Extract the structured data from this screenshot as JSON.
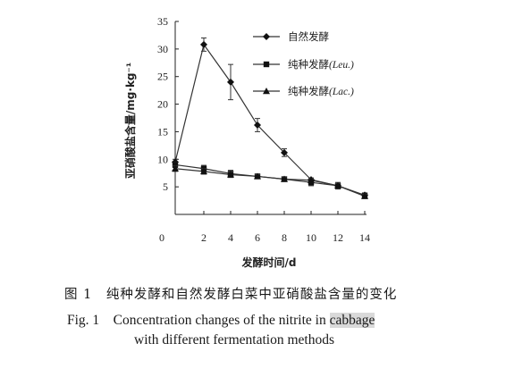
{
  "chart_data": {
    "type": "line",
    "x": [
      0,
      2,
      4,
      6,
      8,
      10,
      12,
      14
    ],
    "xlabel": "发酵时间/d",
    "ylabel": "亚硝酸盐含量/mg·kg⁻¹",
    "xlim": [
      0,
      14
    ],
    "ylim": [
      0,
      35
    ],
    "x_ticks": [
      "0",
      "2",
      "4",
      "6",
      "8",
      "10",
      "12",
      "14"
    ],
    "y_ticks": [
      "5",
      "10",
      "15",
      "20",
      "25",
      "30",
      "35"
    ],
    "grid": false,
    "legend_position": "top-right",
    "series": [
      {
        "name": "自然发酵",
        "name_suffix": "",
        "marker": "diamond",
        "values": [
          9.5,
          30.8,
          24.0,
          16.2,
          11.2,
          6.3,
          5.2,
          3.5
        ],
        "errors": [
          0.5,
          1.2,
          3.2,
          1.2,
          0.7,
          0.3,
          0.4,
          0.4
        ]
      },
      {
        "name": "纯种发酵",
        "name_suffix": "(Leu.)",
        "marker": "square",
        "values": [
          9.0,
          8.3,
          7.4,
          6.9,
          6.4,
          5.8,
          5.2,
          3.4
        ],
        "errors": [
          0.5,
          0.6,
          0.6,
          0.3,
          0.4,
          0.6,
          0.6,
          0.4
        ]
      },
      {
        "name": "纯种发酵",
        "name_suffix": "(Lac.)",
        "marker": "triangle",
        "values": [
          8.3,
          7.8,
          7.2,
          6.9,
          6.4,
          6.2,
          5.2,
          3.3
        ],
        "errors": [
          0.5,
          0.5,
          0.5,
          0.3,
          0.4,
          0.4,
          0.4,
          0.4
        ]
      }
    ]
  },
  "caption": {
    "cn": "图 1　纯种发酵和自然发酵白菜中亚硝酸盐含量的变化",
    "en_line1_pre": "Fig. 1　Concentration changes of the nitrite in ",
    "en_line1_highlight": "cabbage",
    "en_line2": "with different fermentation methods"
  },
  "style": {
    "line_color": "#333333",
    "marker_color": "#111111"
  }
}
